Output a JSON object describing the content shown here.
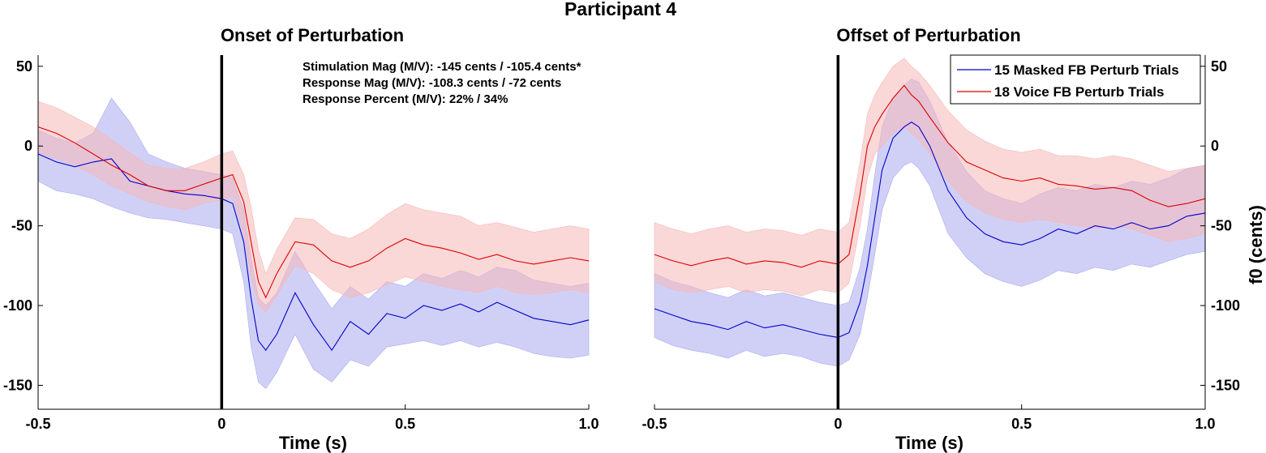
{
  "figure_title": "Participant 4",
  "chart_data": [
    {
      "type": "line",
      "title": "Onset of Perturbation",
      "xlabel": "Time (s)",
      "ylabel": "",
      "xlim": [
        -0.5,
        1.0
      ],
      "ylim": [
        -165,
        57
      ],
      "xticks": [
        "-0.5",
        "0",
        "0.5",
        "1.0"
      ],
      "yticks": [
        "50",
        "0",
        "-50",
        "-100",
        "-150"
      ],
      "ytick_side": "left",
      "event_line_x": 0,
      "annotations": [
        "Stimulation Mag  (M/V): -145 cents / -105.4 cents*",
        "Response Mag (M/V): -108.3 cents / -72 cents",
        "Response Percent (M/V): 22% / 34%"
      ],
      "series": [
        {
          "name": "15 Masked FB Perturb Trials",
          "color": "#0000cc",
          "band_color": "#aaaaf0",
          "x": [
            -0.5,
            -0.45,
            -0.4,
            -0.35,
            -0.3,
            -0.25,
            -0.2,
            -0.15,
            -0.1,
            -0.05,
            0,
            0.03,
            0.06,
            0.08,
            0.1,
            0.12,
            0.15,
            0.2,
            0.25,
            0.3,
            0.35,
            0.4,
            0.45,
            0.5,
            0.55,
            0.6,
            0.65,
            0.7,
            0.75,
            0.8,
            0.85,
            0.9,
            0.95,
            1.0
          ],
          "y": [
            -5,
            -10,
            -13,
            -10,
            -8,
            -22,
            -25,
            -28,
            -30,
            -31,
            -33,
            -36,
            -60,
            -95,
            -122,
            -128,
            -118,
            -92,
            -112,
            -128,
            -110,
            -118,
            -105,
            -108,
            -100,
            -103,
            -99,
            -104,
            -98,
            -103,
            -108,
            -110,
            -112,
            -109
          ],
          "lower": [
            -22,
            -28,
            -30,
            -33,
            -38,
            -42,
            -45,
            -46,
            -48,
            -50,
            -52,
            -55,
            -85,
            -125,
            -148,
            -152,
            -142,
            -118,
            -140,
            -148,
            -134,
            -138,
            -126,
            -124,
            -122,
            -125,
            -122,
            -126,
            -123,
            -126,
            -130,
            -132,
            -133,
            -131
          ],
          "upper": [
            10,
            5,
            2,
            8,
            30,
            15,
            -5,
            -10,
            -14,
            -16,
            -18,
            -20,
            -40,
            -70,
            -95,
            -100,
            -92,
            -66,
            -85,
            -102,
            -88,
            -96,
            -85,
            -88,
            -80,
            -83,
            -78,
            -82,
            -76,
            -78,
            -84,
            -86,
            -88,
            -86
          ]
        },
        {
          "name": "18 Voice FB Perturb Trials",
          "color": "#dd0000",
          "band_color": "#f5b8b8",
          "x": [
            -0.5,
            -0.45,
            -0.4,
            -0.35,
            -0.3,
            -0.25,
            -0.2,
            -0.15,
            -0.1,
            -0.05,
            0,
            0.03,
            0.06,
            0.08,
            0.1,
            0.12,
            0.15,
            0.2,
            0.25,
            0.3,
            0.35,
            0.4,
            0.45,
            0.5,
            0.55,
            0.6,
            0.65,
            0.7,
            0.75,
            0.8,
            0.85,
            0.9,
            0.95,
            1.0
          ],
          "y": [
            12,
            8,
            2,
            -5,
            -12,
            -18,
            -25,
            -28,
            -28,
            -24,
            -20,
            -18,
            -35,
            -60,
            -85,
            -95,
            -80,
            -60,
            -62,
            -72,
            -76,
            -72,
            -64,
            -58,
            -62,
            -64,
            -67,
            -71,
            -68,
            -72,
            -74,
            -72,
            -70,
            -72
          ],
          "lower": [
            -4,
            -8,
            -12,
            -18,
            -25,
            -30,
            -35,
            -38,
            -40,
            -36,
            -34,
            -32,
            -55,
            -82,
            -100,
            -104,
            -94,
            -75,
            -80,
            -90,
            -95,
            -92,
            -87,
            -82,
            -85,
            -88,
            -90,
            -92,
            -88,
            -92,
            -93,
            -92,
            -90,
            -92
          ],
          "upper": [
            28,
            24,
            18,
            12,
            4,
            -4,
            -12,
            -14,
            -14,
            -10,
            -5,
            -3,
            -18,
            -38,
            -65,
            -80,
            -65,
            -45,
            -46,
            -55,
            -58,
            -52,
            -43,
            -36,
            -40,
            -42,
            -44,
            -50,
            -48,
            -51,
            -54,
            -52,
            -50,
            -52
          ]
        }
      ]
    },
    {
      "type": "line",
      "title": "Offset of Perturbation",
      "xlabel": "Time (s)",
      "ylabel": "f0 (cents)",
      "xlim": [
        -0.5,
        1.0
      ],
      "ylim": [
        -165,
        57
      ],
      "xticks": [
        "-0.5",
        "0",
        "0.5",
        "1.0"
      ],
      "yticks": [
        "50",
        "0",
        "-50",
        "-100",
        "-150"
      ],
      "ytick_side": "right",
      "event_line_x": 0,
      "legend": "top-right",
      "series": [
        {
          "name": "15 Masked FB Perturb Trials",
          "color": "#0000cc",
          "band_color": "#aaaaf0",
          "x": [
            -0.5,
            -0.45,
            -0.4,
            -0.35,
            -0.3,
            -0.25,
            -0.2,
            -0.15,
            -0.1,
            -0.05,
            0,
            0.03,
            0.06,
            0.08,
            0.1,
            0.12,
            0.15,
            0.18,
            0.2,
            0.22,
            0.25,
            0.3,
            0.35,
            0.4,
            0.45,
            0.5,
            0.55,
            0.6,
            0.65,
            0.7,
            0.75,
            0.8,
            0.85,
            0.9,
            0.95,
            1.0
          ],
          "y": [
            -102,
            -106,
            -110,
            -112,
            -115,
            -110,
            -114,
            -112,
            -115,
            -118,
            -120,
            -117,
            -98,
            -75,
            -45,
            -15,
            5,
            12,
            15,
            12,
            0,
            -28,
            -45,
            -55,
            -60,
            -62,
            -58,
            -52,
            -55,
            -50,
            -52,
            -48,
            -52,
            -50,
            -44,
            -42
          ],
          "lower": [
            -120,
            -125,
            -128,
            -130,
            -133,
            -128,
            -132,
            -130,
            -132,
            -136,
            -138,
            -134,
            -118,
            -95,
            -68,
            -40,
            -20,
            -12,
            -10,
            -14,
            -25,
            -55,
            -70,
            -80,
            -85,
            -88,
            -84,
            -78,
            -80,
            -76,
            -78,
            -74,
            -76,
            -72,
            -68,
            -66
          ],
          "upper": [
            -80,
            -85,
            -88,
            -92,
            -95,
            -90,
            -94,
            -92,
            -95,
            -98,
            -100,
            -98,
            -76,
            -52,
            -18,
            12,
            30,
            38,
            42,
            40,
            28,
            2,
            -16,
            -28,
            -33,
            -36,
            -30,
            -26,
            -28,
            -24,
            -26,
            -22,
            -24,
            -20,
            -14,
            -12
          ]
        },
        {
          "name": "18 Voice FB Perturb Trials",
          "color": "#dd0000",
          "band_color": "#f5b8b8",
          "x": [
            -0.5,
            -0.45,
            -0.4,
            -0.35,
            -0.3,
            -0.25,
            -0.2,
            -0.15,
            -0.1,
            -0.05,
            0,
            0.03,
            0.06,
            0.08,
            0.1,
            0.12,
            0.15,
            0.18,
            0.2,
            0.22,
            0.25,
            0.3,
            0.35,
            0.4,
            0.45,
            0.5,
            0.55,
            0.6,
            0.65,
            0.7,
            0.75,
            0.8,
            0.85,
            0.9,
            0.95,
            1.0
          ],
          "y": [
            -68,
            -72,
            -75,
            -72,
            -70,
            -74,
            -72,
            -73,
            -76,
            -72,
            -74,
            -68,
            -30,
            0,
            12,
            20,
            30,
            38,
            32,
            28,
            18,
            2,
            -10,
            -15,
            -20,
            -22,
            -20,
            -24,
            -25,
            -27,
            -26,
            -28,
            -34,
            -38,
            -36,
            -33
          ],
          "lower": [
            -85,
            -90,
            -92,
            -90,
            -88,
            -92,
            -90,
            -91,
            -94,
            -90,
            -92,
            -86,
            -50,
            -20,
            -5,
            0,
            8,
            12,
            8,
            4,
            -5,
            -22,
            -35,
            -42,
            -46,
            -48,
            -46,
            -48,
            -50,
            -52,
            -50,
            -52,
            -56,
            -60,
            -58,
            -55
          ],
          "upper": [
            -48,
            -52,
            -55,
            -52,
            -50,
            -54,
            -52,
            -53,
            -56,
            -52,
            -54,
            -48,
            -10,
            20,
            32,
            40,
            50,
            55,
            50,
            46,
            38,
            22,
            10,
            3,
            -2,
            -4,
            -2,
            -6,
            -6,
            -8,
            -6,
            -8,
            -12,
            -16,
            -14,
            -12
          ]
        }
      ]
    }
  ]
}
